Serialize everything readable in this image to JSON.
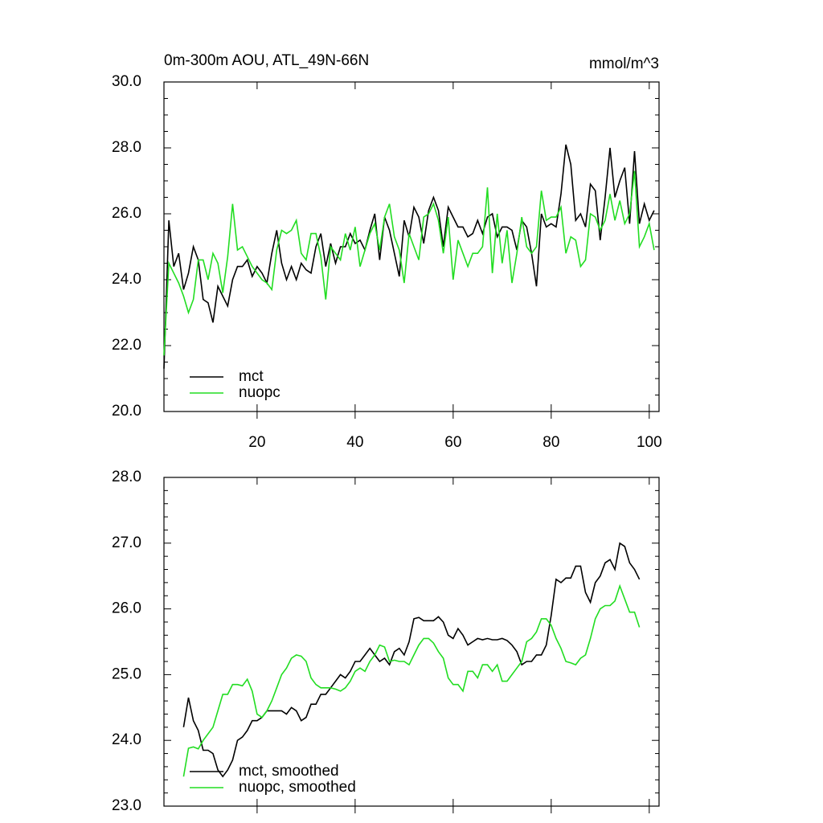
{
  "chart_data": [
    {
      "type": "line",
      "title": "0m-300m AOU, ATL_49N-66N",
      "units": "mmol/m^3",
      "x": [
        1,
        2,
        3,
        4,
        5,
        6,
        7,
        8,
        9,
        10,
        11,
        12,
        13,
        14,
        15,
        16,
        17,
        18,
        19,
        20,
        21,
        22,
        23,
        24,
        25,
        26,
        27,
        28,
        29,
        30,
        31,
        32,
        33,
        34,
        35,
        36,
        37,
        38,
        39,
        40,
        41,
        42,
        43,
        44,
        45,
        46,
        47,
        48,
        49,
        50,
        51,
        52,
        53,
        54,
        55,
        56,
        57,
        58,
        59,
        60,
        61,
        62,
        63,
        64,
        65,
        66,
        67,
        68,
        69,
        70,
        71,
        72,
        73,
        74,
        75,
        76,
        77,
        78,
        79,
        80,
        81,
        82,
        83,
        84,
        85,
        86,
        87,
        88,
        89,
        90,
        91,
        92,
        93,
        94,
        95,
        96,
        97,
        98,
        99,
        100,
        101
      ],
      "series": [
        {
          "name": "mct",
          "color": "#000000",
          "values": [
            21.3,
            25.8,
            24.4,
            24.8,
            23.7,
            24.2,
            25.0,
            24.6,
            23.4,
            23.3,
            22.7,
            23.8,
            23.5,
            23.2,
            24.0,
            24.4,
            24.4,
            24.6,
            24.1,
            24.4,
            24.2,
            23.9,
            24.8,
            25.5,
            24.5,
            24.0,
            24.4,
            24.0,
            24.5,
            24.3,
            24.2,
            25.0,
            25.4,
            24.4,
            25.1,
            24.5,
            25.0,
            25.0,
            25.4,
            25.1,
            25.2,
            24.9,
            25.5,
            26.0,
            24.6,
            25.9,
            25.5,
            24.8,
            24.1,
            25.8,
            25.3,
            26.2,
            25.9,
            25.1,
            26.1,
            26.5,
            26.1,
            25.0,
            26.2,
            25.9,
            25.6,
            25.6,
            25.3,
            25.4,
            25.8,
            25.4,
            25.9,
            26.0,
            25.3,
            25.6,
            25.6,
            25.5,
            24.9,
            25.8,
            25.6,
            24.8,
            23.8,
            26.0,
            25.6,
            25.7,
            25.6,
            26.6,
            28.1,
            27.5,
            25.8,
            26.0,
            25.6,
            26.9,
            26.7,
            25.2,
            26.5,
            28.0,
            26.5,
            27.0,
            27.4,
            25.7,
            27.9,
            25.7,
            26.3,
            25.8,
            26.1
          ]
        },
        {
          "name": "nuopc",
          "color": "#22dd22",
          "values": [
            21.7,
            24.5,
            24.2,
            23.9,
            23.5,
            23.0,
            23.4,
            24.6,
            24.6,
            24.0,
            24.8,
            24.5,
            23.6,
            24.7,
            26.3,
            24.9,
            25.0,
            24.7,
            24.4,
            24.2,
            24.0,
            23.9,
            23.7,
            24.9,
            25.5,
            25.4,
            25.5,
            25.8,
            24.8,
            24.6,
            25.4,
            25.4,
            24.7,
            23.4,
            25.0,
            24.8,
            24.6,
            25.4,
            24.9,
            25.6,
            24.4,
            24.9,
            25.4,
            25.7,
            24.9,
            25.9,
            26.3,
            25.3,
            24.9,
            23.9,
            25.4,
            25.0,
            24.6,
            25.9,
            26.0,
            26.3,
            25.8,
            24.8,
            25.9,
            24.0,
            25.2,
            24.8,
            24.4,
            24.8,
            24.8,
            25.0,
            26.8,
            24.2,
            26.0,
            24.5,
            25.5,
            23.9,
            24.8,
            25.9,
            25.0,
            24.8,
            25.0,
            26.7,
            25.8,
            25.9,
            25.9,
            26.2,
            24.8,
            25.3,
            25.2,
            24.4,
            24.6,
            26.0,
            25.9,
            25.5,
            25.8,
            26.6,
            25.8,
            26.4,
            25.7,
            26.0,
            27.3,
            25.0,
            25.3,
            25.7,
            24.9
          ]
        }
      ],
      "xlim": [
        1,
        102
      ],
      "xticks": [
        20,
        40,
        60,
        80,
        100
      ],
      "ylim": [
        20,
        30
      ],
      "yticks": [
        {
          "value": 20,
          "label": "20.0"
        },
        {
          "value": 22,
          "label": "22.0"
        },
        {
          "value": 24,
          "label": "24.0"
        },
        {
          "value": 26,
          "label": "26.0"
        },
        {
          "value": 28,
          "label": "28.0"
        },
        {
          "value": 30,
          "label": "30.0"
        }
      ],
      "legend": "lower left"
    },
    {
      "type": "line",
      "x": [
        5,
        6,
        7,
        8,
        9,
        10,
        11,
        12,
        13,
        14,
        15,
        16,
        17,
        18,
        19,
        20,
        21,
        22,
        23,
        24,
        25,
        26,
        27,
        28,
        29,
        30,
        31,
        32,
        33,
        34,
        35,
        36,
        37,
        38,
        39,
        40,
        41,
        42,
        43,
        44,
        45,
        46,
        47,
        48,
        49,
        50,
        51,
        52,
        53,
        54,
        55,
        56,
        57,
        58,
        59,
        60,
        61,
        62,
        63,
        64,
        65,
        66,
        67,
        68,
        69,
        70,
        71,
        72,
        73,
        74,
        75,
        76,
        77,
        78,
        79,
        80,
        81,
        82,
        83,
        84,
        85,
        86,
        87,
        88,
        89,
        90,
        91,
        92,
        93,
        94,
        95,
        96,
        97,
        98
      ],
      "series": [
        {
          "name": "mct, smoothed",
          "color": "#000000",
          "values": [
            24.2,
            24.65,
            24.3,
            24.15,
            23.85,
            23.85,
            23.8,
            23.55,
            23.45,
            23.55,
            23.7,
            24.0,
            24.05,
            24.15,
            24.3,
            24.3,
            24.35,
            24.45,
            24.45,
            24.45,
            24.45,
            24.4,
            24.5,
            24.45,
            24.3,
            24.35,
            24.55,
            24.55,
            24.7,
            24.7,
            24.8,
            24.9,
            25.0,
            24.95,
            25.05,
            25.2,
            25.2,
            25.3,
            25.4,
            25.3,
            25.2,
            25.25,
            25.15,
            25.35,
            25.4,
            25.3,
            25.5,
            25.85,
            25.87,
            25.82,
            25.82,
            25.82,
            25.88,
            25.8,
            25.6,
            25.55,
            25.7,
            25.6,
            25.45,
            25.5,
            25.55,
            25.53,
            25.55,
            25.53,
            25.53,
            25.55,
            25.52,
            25.45,
            25.35,
            25.15,
            25.2,
            25.2,
            25.3,
            25.3,
            25.45,
            25.9,
            26.45,
            26.4,
            26.47,
            26.47,
            26.65,
            26.65,
            26.25,
            26.1,
            26.4,
            26.5,
            26.7,
            26.75,
            26.6,
            27.0,
            26.95,
            26.7,
            26.6,
            26.45
          ]
        },
        {
          "name": "nuopc, smoothed",
          "color": "#22dd22",
          "values": [
            23.45,
            23.88,
            23.9,
            23.87,
            24.0,
            24.1,
            24.2,
            24.45,
            24.7,
            24.7,
            24.85,
            24.85,
            24.83,
            24.93,
            24.75,
            24.4,
            24.35,
            24.45,
            24.6,
            24.8,
            25.0,
            25.1,
            25.25,
            25.3,
            25.28,
            25.2,
            24.95,
            24.85,
            24.8,
            24.8,
            24.8,
            24.78,
            24.75,
            24.8,
            24.9,
            25.05,
            25.1,
            25.05,
            25.2,
            25.3,
            25.45,
            25.42,
            25.2,
            25.22,
            25.2,
            25.2,
            25.15,
            25.3,
            25.45,
            25.55,
            25.55,
            25.48,
            25.35,
            25.25,
            24.95,
            24.85,
            24.85,
            24.75,
            25.05,
            25.05,
            24.95,
            25.15,
            25.15,
            25.05,
            25.15,
            24.9,
            24.9,
            25.0,
            25.1,
            25.2,
            25.5,
            25.55,
            25.65,
            25.85,
            25.85,
            25.75,
            25.55,
            25.4,
            25.2,
            25.18,
            25.15,
            25.25,
            25.3,
            25.55,
            25.85,
            26.0,
            26.05,
            26.05,
            26.12,
            26.35,
            26.15,
            25.95,
            25.95,
            25.72
          ]
        }
      ],
      "xlim": [
        1,
        102
      ],
      "xticks": [
        20,
        40,
        60,
        80,
        100
      ],
      "ylim": [
        23,
        28
      ],
      "yticks": [
        {
          "value": 23,
          "label": "23.0"
        },
        {
          "value": 24,
          "label": "24.0"
        },
        {
          "value": 25,
          "label": "25.0"
        },
        {
          "value": 26,
          "label": "26.0"
        },
        {
          "value": 27,
          "label": "27.0"
        },
        {
          "value": 28,
          "label": "28.0"
        }
      ],
      "legend": "lower left"
    }
  ]
}
